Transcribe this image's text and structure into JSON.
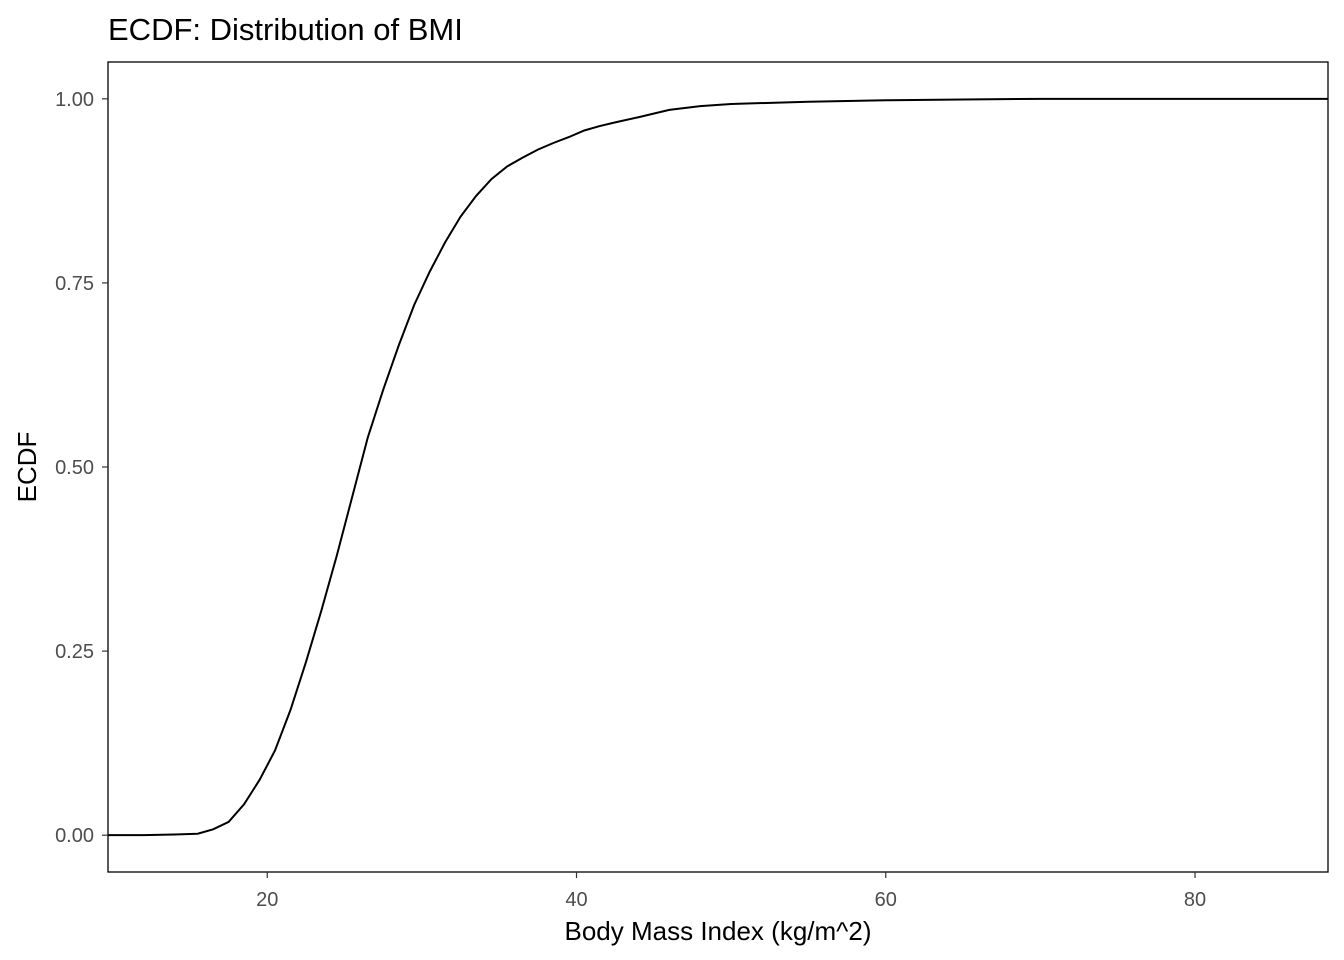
{
  "chart_data": {
    "type": "line",
    "title": "ECDF: Distribution of BMI",
    "xlabel": "Body Mass Index (kg/m^2)",
    "ylabel": "ECDF",
    "xlim": [
      9.7,
      88.6
    ],
    "ylim": [
      -0.05,
      1.05
    ],
    "x_ticks": [
      20,
      40,
      60,
      80
    ],
    "x_tick_labels": [
      "20",
      "40",
      "60",
      "80"
    ],
    "y_ticks": [
      0,
      0.25,
      0.5,
      0.75,
      1.0
    ],
    "y_tick_labels": [
      "0.00",
      "0.25",
      "0.50",
      "0.75",
      "1.00"
    ],
    "grid": false,
    "series": [
      {
        "color": "#000000",
        "x": [
          9.7,
          12,
          14,
          15.5,
          16.5,
          17.5,
          18.5,
          19.5,
          20.5,
          21.5,
          22.5,
          23.5,
          24.5,
          25.5,
          26.5,
          27.5,
          28.5,
          29.5,
          30.5,
          31.5,
          32.5,
          33.5,
          34.5,
          35.5,
          36.5,
          37.5,
          38.5,
          39.5,
          40.5,
          41.5,
          42.5,
          44,
          46,
          48,
          50,
          55,
          60,
          65,
          70,
          80,
          88.6
        ],
        "y": [
          0.0,
          0.0,
          0.001,
          0.002,
          0.008,
          0.018,
          0.042,
          0.075,
          0.115,
          0.17,
          0.235,
          0.305,
          0.38,
          0.46,
          0.54,
          0.605,
          0.665,
          0.72,
          0.765,
          0.805,
          0.84,
          0.868,
          0.891,
          0.908,
          0.92,
          0.931,
          0.94,
          0.948,
          0.957,
          0.963,
          0.968,
          0.975,
          0.985,
          0.99,
          0.993,
          0.996,
          0.998,
          0.999,
          1.0,
          1.0,
          1.0
        ]
      }
    ]
  }
}
